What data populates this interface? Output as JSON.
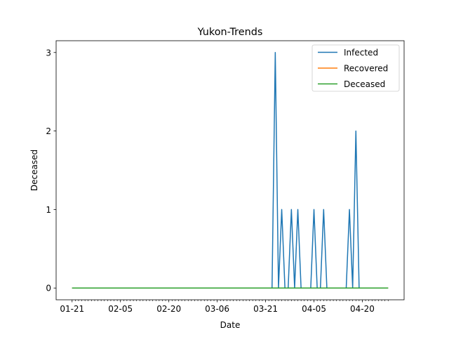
{
  "chart_data": {
    "type": "line",
    "title": "Yukon-Trends",
    "xlabel": "Date",
    "ylabel": "Deceased",
    "x_start": "01-21",
    "x_end": "04-28",
    "x_tick_labels": [
      "01-21",
      "02-05",
      "02-20",
      "03-06",
      "03-21",
      "04-05",
      "04-20"
    ],
    "y_ticks": [
      0,
      1,
      2,
      3
    ],
    "ylim": [
      -0.15,
      3.15
    ],
    "grid": false,
    "legend_position": "top-right",
    "series": [
      {
        "name": "Infected",
        "color": "#1f77b4",
        "points": [
          [
            "03-24",
            3
          ],
          [
            "03-26",
            1
          ],
          [
            "03-29",
            1
          ],
          [
            "03-31",
            1
          ],
          [
            "04-05",
            1
          ],
          [
            "04-08",
            1
          ],
          [
            "04-16",
            1
          ],
          [
            "04-18",
            2
          ]
        ]
      },
      {
        "name": "Recovered",
        "color": "#ff7f0e",
        "points": []
      },
      {
        "name": "Deceased",
        "color": "#2ca02c",
        "points": []
      }
    ]
  }
}
